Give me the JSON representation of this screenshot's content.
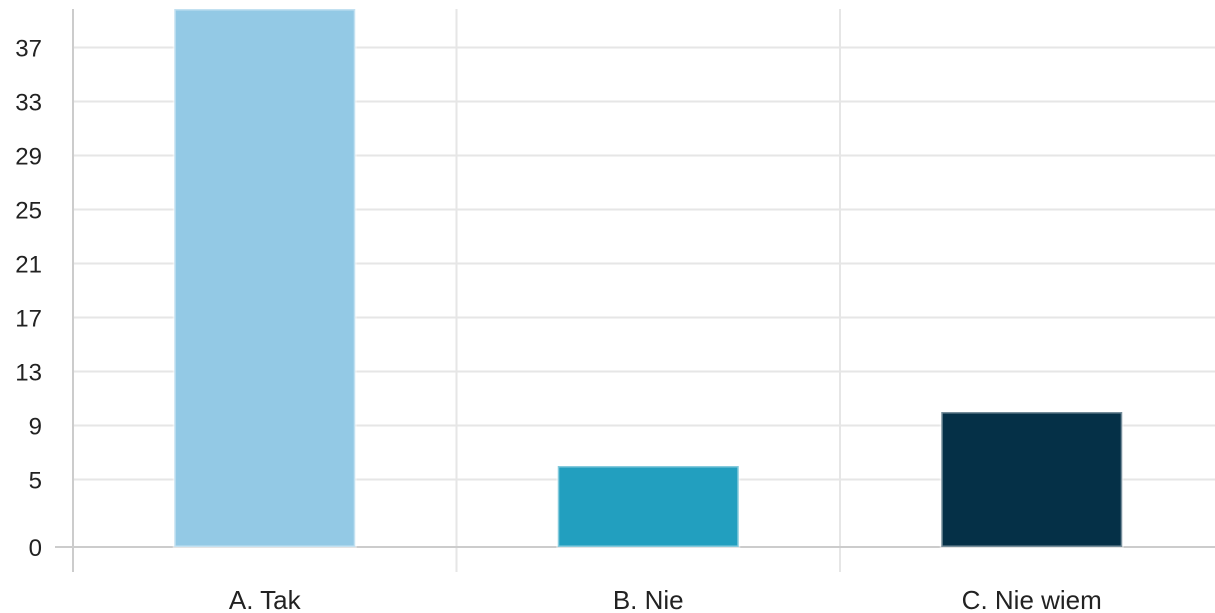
{
  "chart_data": {
    "type": "bar",
    "categories": [
      "A. Tak",
      "B. Nie",
      "C. Nie wiem"
    ],
    "values": [
      40,
      6,
      10
    ],
    "colors": [
      "#93c9e5",
      "#229fbf",
      "#053047"
    ],
    "y_ticks": [
      "0",
      "5",
      "9",
      "13",
      "17",
      "21",
      "25",
      "29",
      "33",
      "37"
    ],
    "y_tick_values": [
      0,
      5,
      9,
      13,
      17,
      21,
      25,
      29,
      33,
      37
    ],
    "ylim": [
      0,
      40
    ],
    "title": "",
    "xlabel": "",
    "ylabel": "",
    "grid": true,
    "legend": "none"
  }
}
